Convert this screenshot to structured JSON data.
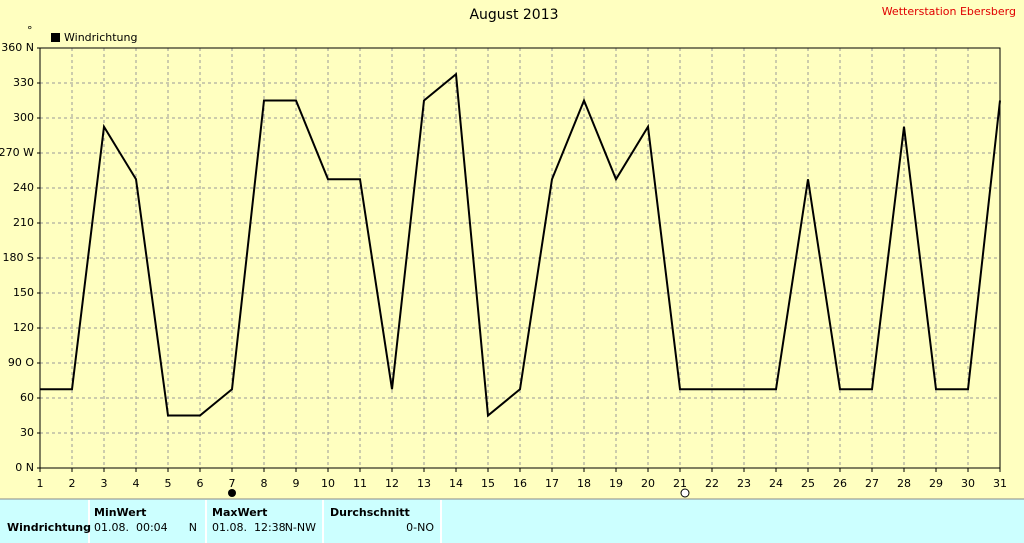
{
  "chart_data": {
    "type": "line",
    "title": "August 2013",
    "y_unit": "°",
    "x": [
      1,
      2,
      3,
      4,
      5,
      6,
      7,
      8,
      9,
      10,
      11,
      12,
      13,
      14,
      15,
      16,
      17,
      18,
      19,
      20,
      21,
      22,
      23,
      24,
      25,
      26,
      27,
      28,
      29,
      30,
      31
    ],
    "xlim": [
      1,
      31
    ],
    "xticks": [
      1,
      2,
      3,
      4,
      5,
      6,
      7,
      8,
      9,
      10,
      11,
      12,
      13,
      14,
      15,
      16,
      17,
      18,
      19,
      20,
      21,
      22,
      23,
      24,
      25,
      26,
      27,
      28,
      29,
      30,
      31
    ],
    "ylim": [
      0,
      360
    ],
    "yticks": [
      {
        "value": 0,
        "label": "0 N"
      },
      30,
      60,
      {
        "value": 90,
        "label": "90 O"
      },
      120,
      150,
      {
        "value": 180,
        "label": "180 S"
      },
      210,
      240,
      {
        "value": 270,
        "label": "270 W"
      },
      300,
      330,
      {
        "value": 360,
        "label": "360 N"
      }
    ],
    "grid": true,
    "series": [
      {
        "name": "Windrichtung",
        "color": "#000000",
        "values": [
          67.5,
          67.5,
          292.5,
          247.5,
          45,
          45,
          67.5,
          315,
          315,
          247.5,
          247.5,
          67.5,
          315,
          337.5,
          45,
          67.5,
          247.5,
          315,
          247.5,
          292.5,
          67.5,
          67.5,
          67.5,
          67.5,
          247.5,
          67.5,
          67.5,
          292.5,
          67.5,
          67.5,
          315
        ]
      }
    ]
  },
  "station": "Wetterstation Ebersberg",
  "table": {
    "columns": [
      "MinWert",
      "MaxWert",
      "Durchschnitt"
    ],
    "rows": [
      [
        "Windrichtung",
        "01.08.  00:04",
        "N",
        "01.08.  12:38",
        "N-NW",
        "0-NO"
      ]
    ]
  }
}
